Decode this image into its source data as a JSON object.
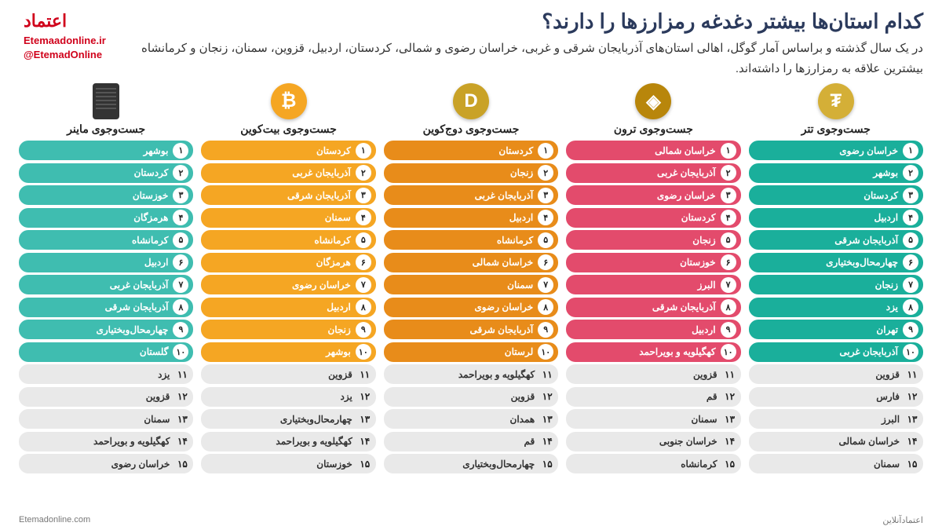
{
  "header": {
    "title": "کدام استان‌ها بیشتر دغدغه رمزارزها را دارند؟",
    "subtitle": "در یک سال گذشته و براساس آمار گوگل، اهالی استان‌های آذربایجان شرقی و غربی، خراسان رضوی و شمالی، کردستان، اردبیل، قزوین، سمنان، زنجان و کرمانشاه بیشترین علاقه به رمزارزها را داشته‌اند.",
    "logo_site": "Etemaadonline.ir",
    "logo_handle": "@EtemadOnline"
  },
  "palette": {
    "miner": "#3fbdb0",
    "bitcoin": "#f5a623",
    "doge": "#e88c1a",
    "tron": "#e34b6c",
    "tether": "#1aaf9b",
    "plain": "#e9e9e9"
  },
  "coin_icons": {
    "miner": {
      "bg": "#333333",
      "glyph": ""
    },
    "bitcoin": {
      "bg": "#f5a623",
      "glyph": "₿"
    },
    "doge": {
      "bg": "#c9a227",
      "glyph": "D"
    },
    "tron": {
      "bg": "#b8860b",
      "glyph": "◈"
    },
    "tether": {
      "bg": "#d4af37",
      "glyph": "₮"
    }
  },
  "columns": [
    {
      "key": "miner",
      "title": "جست‌وجوی ماینر",
      "colored_count": 10,
      "items": [
        "بوشهر",
        "کردستان",
        "خوزستان",
        "هرمزگان",
        "کرمانشاه",
        "اردبیل",
        "آذربایجان غربی",
        "آذربایجان شرقی",
        "چهارمحال‌وبختیاری",
        "گلستان",
        "یزد",
        "قزوین",
        "سمنان",
        "کهگیلویه و بویراحمد",
        "خراسان رضوی"
      ]
    },
    {
      "key": "bitcoin",
      "title": "جست‌وجوی بیت‌کوین",
      "colored_count": 10,
      "items": [
        "کردستان",
        "آذربایجان غربی",
        "آذربایجان شرقی",
        "سمنان",
        "کرمانشاه",
        "هرمزگان",
        "خراسان رضوی",
        "اردبیل",
        "زنجان",
        "بوشهر",
        "قزوین",
        "یزد",
        "چهارمحال‌وبختیاری",
        "کهگیلویه و بویراحمد",
        "خوزستان"
      ]
    },
    {
      "key": "doge",
      "title": "جست‌وجوی دوج‌کوین",
      "colored_count": 10,
      "items": [
        "کردستان",
        "زنجان",
        "آذربایجان غربی",
        "اردبیل",
        "کرمانشاه",
        "خراسان شمالی",
        "سمنان",
        "خراسان رضوی",
        "آذربایجان شرقی",
        "لرستان",
        "کهگیلویه و بویراحمد",
        "قزوین",
        "همدان",
        "قم",
        "چهارمحال‌وبختیاری"
      ]
    },
    {
      "key": "tron",
      "title": "جست‌وجوی ترون",
      "colored_count": 10,
      "items": [
        "خراسان شمالی",
        "آذربایجان غربی",
        "خراسان رضوی",
        "کردستان",
        "زنجان",
        "خوزستان",
        "البرز",
        "آذربایجان شرقی",
        "اردبیل",
        "کهگیلویه و بویراحمد",
        "قزوین",
        "قم",
        "سمنان",
        "خراسان جنوبی",
        "کرمانشاه"
      ]
    },
    {
      "key": "tether",
      "title": "جست‌وجوی تتر",
      "colored_count": 10,
      "items": [
        "خراسان رضوی",
        "بوشهر",
        "کردستان",
        "اردبیل",
        "آذربایجان شرقی",
        "چهارمحال‌وبختیاری",
        "زنجان",
        "یزد",
        "تهران",
        "آذربایجان غربی",
        "قزوین",
        "فارس",
        "البرز",
        "خراسان شمالی",
        "سمنان"
      ]
    }
  ],
  "footer": {
    "left": "Etemadonline.com",
    "right": "اعتمادآنلاین"
  }
}
